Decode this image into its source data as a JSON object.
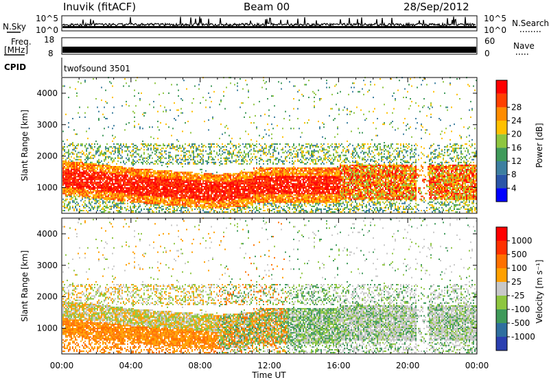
{
  "header": {
    "station": "Inuvik (fitACF)",
    "beam": "Beam 00",
    "date": "28/Sep/2012"
  },
  "top_panels": {
    "nsky_label": "N.Sky",
    "nsky_ticks": [
      "10^5",
      "10^0"
    ],
    "nsearch_label": "N.Search",
    "nsearch_ticks": [
      "10^5",
      "10^0"
    ],
    "freq_label": "Freq.",
    "freq_unit": "[MHz]",
    "freq_ticks": [
      "18",
      "8"
    ],
    "nave_label": "Nave",
    "nave_ticks": [
      "60",
      "0"
    ],
    "cpid_label": "CPID",
    "cpid_value": "twofsound 3501"
  },
  "chart_data": [
    {
      "type": "heatmap",
      "name": "power",
      "xlabel": "Time UT",
      "ylabel": "Slant Range [km]",
      "xlim": [
        0,
        24
      ],
      "ylim": [
        180,
        4500
      ],
      "x_ticks": [
        "00:00",
        "04:00",
        "08:00",
        "12:00",
        "16:00",
        "20:00",
        "00:00"
      ],
      "y_ticks": [
        1000,
        2000,
        3000,
        4000
      ],
      "colorbar": {
        "label": "Power [dB]",
        "range": [
          0,
          32
        ],
        "ticks": [
          4,
          8,
          12,
          16,
          20,
          24,
          28
        ],
        "colors": [
          "#0000ff",
          "#2a55a8",
          "#3d7fa0",
          "#3f9a5a",
          "#8ec63f",
          "#ffc000",
          "#ff8c00",
          "#ff4000",
          "#ff0000"
        ]
      }
    },
    {
      "type": "heatmap",
      "name": "velocity",
      "xlabel": "Time UT",
      "ylabel": "Slant Range [km]",
      "xlim": [
        0,
        24
      ],
      "ylim": [
        180,
        4500
      ],
      "x_ticks": [
        "00:00",
        "04:00",
        "08:00",
        "12:00",
        "16:00",
        "20:00",
        "00:00"
      ],
      "y_ticks": [
        1000,
        2000,
        3000,
        4000
      ],
      "colorbar": {
        "label": "Velocity [m s⁻¹]",
        "ticks": [
          "1000",
          "500",
          "100",
          "25",
          "-25",
          "-100",
          "-500",
          "-1000"
        ],
        "colors": [
          "#2a3fb0",
          "#2f6f9f",
          "#3f9a5a",
          "#8ec63f",
          "#c8c8c8",
          "#ffa000",
          "#ff7000",
          "#ff3000",
          "#ff0000"
        ]
      }
    }
  ]
}
